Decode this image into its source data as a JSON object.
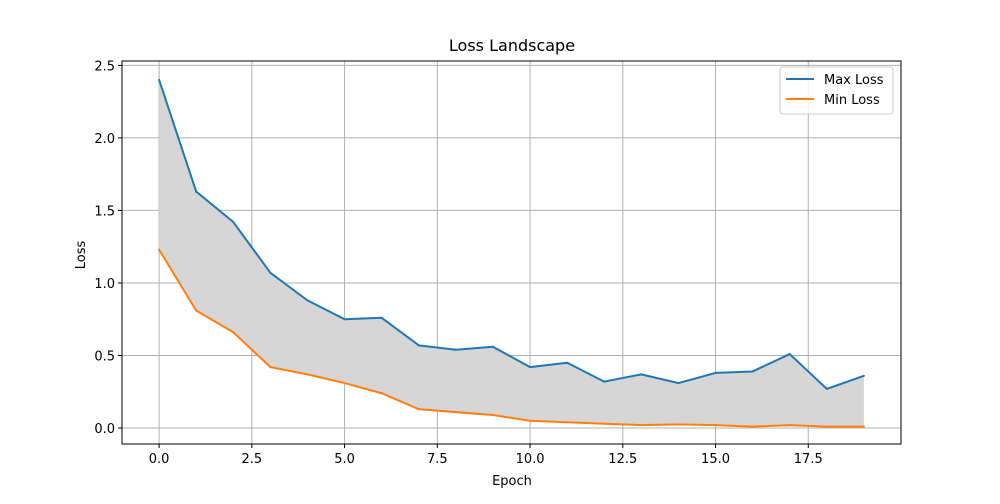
{
  "chart_data": {
    "type": "line",
    "title": "Loss Landscape",
    "xlabel": "Epoch",
    "ylabel": "Loss",
    "xlim": [
      -1,
      20
    ],
    "ylim": [
      -0.11,
      2.53
    ],
    "grid": true,
    "legend_position": "top-right",
    "x": [
      0,
      1,
      2,
      3,
      4,
      5,
      6,
      7,
      8,
      9,
      10,
      11,
      12,
      13,
      14,
      15,
      16,
      17,
      18,
      19
    ],
    "xticks": [
      0.0,
      2.5,
      5.0,
      7.5,
      10.0,
      12.5,
      15.0,
      17.5
    ],
    "xtick_labels": [
      "0.0",
      "2.5",
      "5.0",
      "7.5",
      "10.0",
      "12.5",
      "15.0",
      "17.5"
    ],
    "yticks": [
      0.0,
      0.5,
      1.0,
      1.5,
      2.0,
      2.5
    ],
    "ytick_labels": [
      "0.0",
      "0.5",
      "1.0",
      "1.5",
      "2.0",
      "2.5"
    ],
    "fill_between": {
      "upper": "Max Loss",
      "lower": "Min Loss",
      "color": "#d6d6d6"
    },
    "series": [
      {
        "name": "Max Loss",
        "color": "#1f77b4",
        "values": [
          2.4,
          1.63,
          1.42,
          1.07,
          0.88,
          0.75,
          0.76,
          0.57,
          0.54,
          0.56,
          0.42,
          0.45,
          0.32,
          0.37,
          0.31,
          0.38,
          0.39,
          0.51,
          0.27,
          0.36
        ]
      },
      {
        "name": "Min Loss",
        "color": "#ff7f0e",
        "values": [
          1.23,
          0.81,
          0.66,
          0.42,
          0.37,
          0.31,
          0.24,
          0.13,
          0.11,
          0.09,
          0.05,
          0.04,
          0.03,
          0.02,
          0.025,
          0.02,
          0.01,
          0.02,
          0.01,
          0.01
        ]
      }
    ]
  }
}
